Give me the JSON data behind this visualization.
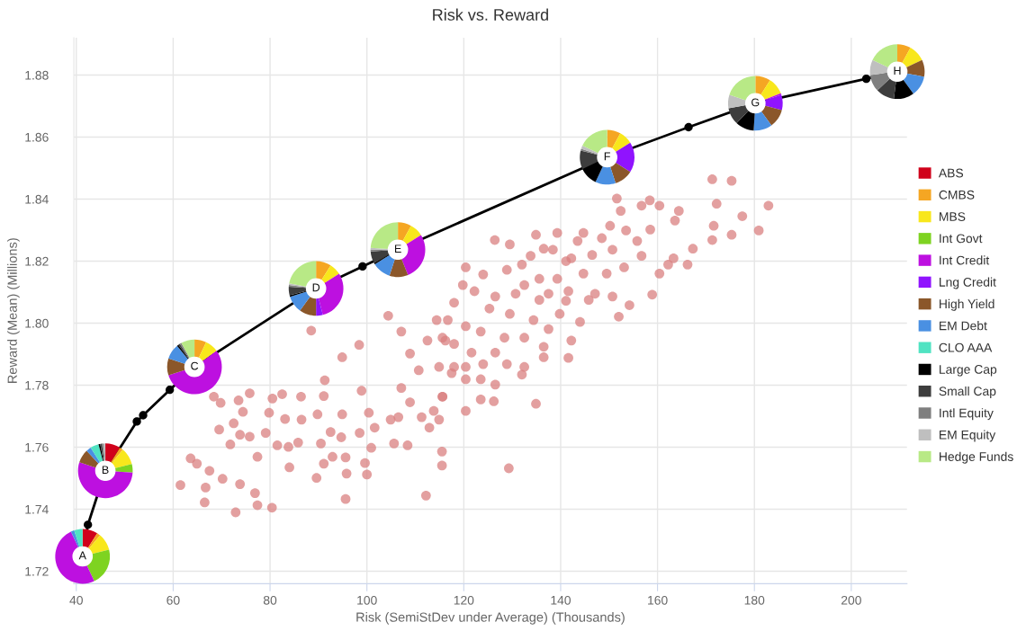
{
  "chart_data": [
    {
      "type": "line",
      "title": "Risk vs. Reward",
      "xlabel": "Risk (SemiStDev under Average) (Thousands)",
      "ylabel": "Reward (Mean) (Millions)",
      "xlim": [
        39.5,
        211.5
      ],
      "xticks": [
        40,
        60,
        80,
        100,
        120,
        140,
        160,
        180,
        200
      ],
      "ylim": [
        1.716,
        1.892
      ],
      "yticks": [
        1.72,
        1.74,
        1.76,
        1.78,
        {
          "value": 1.8,
          "label": "1.80"
        },
        1.82,
        1.84,
        1.86,
        1.88
      ],
      "grid": true,
      "annotations": [
        {
          "text": "A",
          "x": 41.3,
          "y": 1.7248
        },
        {
          "text": "B",
          "x": 46.0,
          "y": 1.7524
        },
        {
          "text": "C",
          "x": 64.4,
          "y": 1.7859
        },
        {
          "text": "D",
          "x": 89.5,
          "y": 1.8112
        },
        {
          "text": "E",
          "x": 106.4,
          "y": 1.8237
        },
        {
          "text": "F",
          "x": 149.6,
          "y": 1.8535
        },
        {
          "text": "G",
          "x": 180.2,
          "y": 1.8709
        },
        {
          "text": "H",
          "x": 209.5,
          "y": 1.8811
        }
      ],
      "series": [
        {
          "type": "line",
          "color": "#000000",
          "x": [
            41.3,
            42.4,
            46.0,
            52.5,
            53.8,
            59.3,
            64.4,
            89.5,
            99.1,
            106.4,
            149.6,
            166.4,
            180.2,
            203.1,
            209.5
          ],
          "values": [
            1.7248,
            1.735,
            1.7524,
            1.7683,
            1.7703,
            1.7785,
            1.7859,
            1.8112,
            1.8183,
            1.8237,
            1.8535,
            1.8632,
            1.8709,
            1.8788,
            1.8811
          ]
        },
        {
          "type": "scatter",
          "color": "#000000",
          "marker": "circle",
          "x": [
            42.4,
            52.5,
            53.8,
            59.3,
            99.1,
            166.4,
            203.1
          ],
          "values": [
            1.735,
            1.7683,
            1.7703,
            1.7785,
            1.8183,
            1.8632,
            1.8788
          ]
        },
        {
          "type": "scatter",
          "color": "#d98080",
          "marker": "circle",
          "x": [
            61.5,
            63.6,
            64.9,
            67.5,
            66.7,
            66.5,
            70.2,
            68.4,
            69.8,
            69.5,
            71.8,
            72.9,
            73.8,
            73.5,
            75.8,
            74.4,
            72.5,
            73.8,
            75.8,
            77.4,
            76.9,
            77.4,
            80.4,
            79.1,
            79.8,
            80.5,
            82.5,
            83.1,
            81.5,
            83.8,
            84.0,
            85.8,
            86.5,
            86.4,
            88.5,
            89.8,
            90.5,
            89.6,
            91.1,
            92.9,
            92.5,
            91.1,
            91.3,
            94.9,
            95.6,
            95.8,
            95.6,
            94.7,
            94.9,
            98.5,
            100.0,
            99.6,
            100.9,
            101.6,
            100.4,
            98.9,
            98.4,
            104.4,
            105.6,
            108.4,
            112.2,
            115.5,
            115.5,
            112.9,
            104.9,
            106.5,
            108.9,
            111.3,
            113.8,
            115.6,
            107.1,
            110.7,
            114.9,
            108.9,
            112.5,
            116.2,
            107.1,
            114.4,
            171.3,
            175.3,
            172.2,
            177.5,
            171.6,
            175.3,
            171.3,
            180.9,
            182.9,
            167.3,
            166.2,
            163.3,
            162.2,
            160.4,
            158.9,
            152.0,
            154.2,
            164.4,
            163.6,
            160.4,
            158.4,
            156.7,
            151.6,
            152.4,
            158.5,
            155.8,
            150.2,
            153.5,
            144.7,
            148.5,
            139.3,
            134.9,
            143.5,
            150.7,
            146.5,
            156.7,
            142.2,
            138.4,
            136.5,
            133.8,
            129.5,
            126.4,
            141.1,
            149.5,
            153.1,
            144.7,
            139.3,
            135.6,
            132.0,
            128.9,
            124.0,
            120.4,
            132.5,
            141.6,
            147.1,
            150.7,
            145.8,
            141.1,
            137.5,
            135.6,
            130.7,
            126.5,
            122.2,
            119.8,
            118.0,
            125.3,
            129.5,
            134.4,
            137.5,
            139.8,
            144.0,
            142.2,
            141.6,
            136.5,
            136.5,
            132.5,
            128.4,
            123.5,
            120.4,
            116.7,
            115.6,
            118.0,
            121.6,
            126.5,
            128.9,
            132.5,
            124.0,
            120.4,
            118.0,
            123.5,
            126.5,
            120.4,
            117.5,
            115.6,
            120.4,
            123.5,
            126.2,
            134.9,
            132.0,
            114.9,
            129.3
          ],
          "values": [
            1.7478,
            1.7564,
            1.7547,
            1.7524,
            1.747,
            1.7422,
            1.7498,
            1.7763,
            1.7743,
            1.7657,
            1.7609,
            1.739,
            1.7481,
            1.7751,
            1.7774,
            1.7714,
            1.7677,
            1.764,
            1.7634,
            1.7569,
            1.7452,
            1.7413,
            1.7405,
            1.7646,
            1.7711,
            1.7757,
            1.7771,
            1.7691,
            1.7606,
            1.7601,
            1.7535,
            1.7615,
            1.7689,
            1.7763,
            1.7976,
            1.7706,
            1.7612,
            1.7501,
            1.7547,
            1.7569,
            1.7649,
            1.7765,
            1.7816,
            1.789,
            1.7567,
            1.7515,
            1.7433,
            1.7632,
            1.7706,
            1.7646,
            1.7512,
            1.7549,
            1.7598,
            1.7663,
            1.7711,
            1.7782,
            1.793,
            1.8024,
            1.7612,
            1.7606,
            1.7444,
            1.7586,
            1.7541,
            1.7663,
            1.7689,
            1.7697,
            1.7745,
            1.7697,
            1.7717,
            1.7763,
            1.7791,
            1.7848,
            1.7859,
            1.7902,
            1.7944,
            1.7944,
            1.7973,
            1.801,
            1.8464,
            1.8459,
            1.8385,
            1.8345,
            1.8314,
            1.8285,
            1.8268,
            1.8299,
            1.8379,
            1.824,
            1.8189,
            1.8209,
            1.8189,
            1.816,
            1.8092,
            1.8021,
            1.8058,
            1.8362,
            1.8331,
            1.8379,
            1.8396,
            1.8379,
            1.8402,
            1.8362,
            1.8302,
            1.8265,
            1.8314,
            1.8299,
            1.8291,
            1.8274,
            1.8291,
            1.8285,
            1.8265,
            1.8237,
            1.822,
            1.8217,
            1.8209,
            1.8237,
            1.824,
            1.8217,
            1.8254,
            1.8268,
            1.82,
            1.816,
            1.818,
            1.816,
            1.8143,
            1.8143,
            1.8189,
            1.8172,
            1.8157,
            1.818,
            1.8123,
            1.8103,
            1.8095,
            1.8086,
            1.8075,
            1.8072,
            1.8095,
            1.8075,
            1.8095,
            1.8086,
            1.8103,
            1.8123,
            1.8066,
            1.8047,
            1.803,
            1.801,
            1.7981,
            1.803,
            1.8004,
            1.7944,
            1.7888,
            1.7924,
            1.789,
            1.7953,
            1.7953,
            1.7973,
            1.799,
            1.801,
            1.7953,
            1.7933,
            1.7905,
            1.7905,
            1.7868,
            1.7859,
            1.7868,
            1.7859,
            1.7859,
            1.7819,
            1.7802,
            1.7819,
            1.7839,
            1.7763,
            1.7717,
            1.7754,
            1.7748,
            1.774,
            1.7834,
            1.7689,
            1.7532
          ]
        }
      ]
    },
    {
      "type": "donut",
      "legend": "right",
      "categories": [
        "ABS",
        "CMBS",
        "MBS",
        "Int Govt",
        "Int Credit",
        "Lng Credit",
        "High Yield",
        "EM Debt",
        "CLO AAA",
        "Large Cap",
        "Small Cap",
        "Intl Equity",
        "EM Equity",
        "Hedge Funds"
      ],
      "colors": [
        "#d0021b",
        "#f5a623",
        "#f8e71c",
        "#7ed321",
        "#bd10e0",
        "#9013fe",
        "#8b572a",
        "#4a90e2",
        "#50e3c2",
        "#000000",
        "#3d3d3d",
        "#7f7f7f",
        "#bfbfbf",
        "#b8e986"
      ],
      "values": [
        9,
        2,
        10,
        22,
        50,
        0,
        0,
        2,
        5,
        0,
        0,
        0,
        0,
        0
      ]
    },
    {
      "type": "donut",
      "colors": [
        "#d0021b",
        "#f5a623",
        "#f8e71c",
        "#7ed321",
        "#bd10e0",
        "#9013fe",
        "#8b572a",
        "#4a90e2",
        "#50e3c2",
        "#000000",
        "#3d3d3d",
        "#7f7f7f",
        "#bfbfbf",
        "#b8e986"
      ],
      "values": [
        9,
        2,
        10,
        5,
        54,
        0,
        8,
        3,
        5,
        1,
        1,
        1,
        1,
        0
      ]
    },
    {
      "type": "donut",
      "colors": [
        "#d0021b",
        "#f5a623",
        "#f8e71c",
        "#7ed321",
        "#bd10e0",
        "#9013fe",
        "#8b572a",
        "#4a90e2",
        "#50e3c2",
        "#000000",
        "#3d3d3d",
        "#7f7f7f",
        "#bfbfbf",
        "#b8e986"
      ],
      "values": [
        0,
        7,
        8,
        0,
        55,
        0,
        10,
        9,
        0,
        1,
        1,
        1,
        0,
        8
      ]
    },
    {
      "type": "donut",
      "colors": [
        "#d0021b",
        "#f5a623",
        "#f8e71c",
        "#7ed321",
        "#bd10e0",
        "#9013fe",
        "#8b572a",
        "#4a90e2",
        "#50e3c2",
        "#000000",
        "#3d3d3d",
        "#7f7f7f",
        "#bfbfbf",
        "#b8e986"
      ],
      "values": [
        0,
        9,
        7,
        0,
        30,
        4,
        10,
        10,
        0,
        1,
        5,
        1,
        1,
        22
      ]
    },
    {
      "type": "donut",
      "colors": [
        "#d0021b",
        "#f5a623",
        "#f8e71c",
        "#7ed321",
        "#bd10e0",
        "#9013fe",
        "#8b572a",
        "#4a90e2",
        "#50e3c2",
        "#000000",
        "#3d3d3d",
        "#7f7f7f",
        "#bfbfbf",
        "#b8e986"
      ],
      "values": [
        0,
        8,
        8,
        0,
        28,
        0,
        11,
        11,
        0,
        1,
        7,
        1,
        1,
        24
      ]
    },
    {
      "type": "donut",
      "colors": [
        "#d0021b",
        "#f5a623",
        "#f8e71c",
        "#7ed321",
        "#bd10e0",
        "#9013fe",
        "#8b572a",
        "#4a90e2",
        "#50e3c2",
        "#000000",
        "#3d3d3d",
        "#7f7f7f",
        "#bfbfbf",
        "#b8e986"
      ],
      "values": [
        0,
        8,
        8,
        0,
        0,
        18,
        11,
        12,
        0,
        11,
        11,
        1,
        2,
        18
      ]
    },
    {
      "type": "donut",
      "colors": [
        "#d0021b",
        "#f5a623",
        "#f8e71c",
        "#7ed321",
        "#bd10e0",
        "#9013fe",
        "#8b572a",
        "#4a90e2",
        "#50e3c2",
        "#000000",
        "#3d3d3d",
        "#7f7f7f",
        "#bfbfbf",
        "#b8e986"
      ],
      "values": [
        0,
        9,
        10,
        0,
        1,
        9,
        11,
        11,
        0,
        11,
        10,
        0,
        8,
        20
      ]
    },
    {
      "type": "donut",
      "colors": [
        "#d0021b",
        "#f5a623",
        "#f8e71c",
        "#7ed321",
        "#bd10e0",
        "#9013fe",
        "#8b572a",
        "#4a90e2",
        "#50e3c2",
        "#000000",
        "#3d3d3d",
        "#7f7f7f",
        "#bfbfbf",
        "#b8e986"
      ],
      "values": [
        0,
        8,
        10,
        0,
        0,
        0,
        10,
        12,
        0,
        12,
        11,
        10,
        9,
        18
      ]
    }
  ]
}
